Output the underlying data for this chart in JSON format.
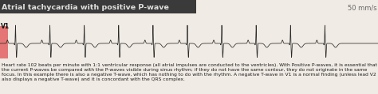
{
  "title": "Atrial tachycardia with positive P-wave",
  "speed_label": "50 mm/s",
  "lead_label": "V1",
  "title_bg": "#3a3a3a",
  "title_fg": "#e0e0e0",
  "ecg_bg": "#f0ebe4",
  "ecg_line_color": "#2a2a2a",
  "lead_box_color": "#e05050",
  "speed_color": "#666666",
  "body_text": "Heart rate 102 beats per minute with 1:1 ventricular response (all atrial impulses are conducted to the ventricles). With Positive P-waves, it is essential that the current P-waves be compared with the P-waves visible during sinus rhythm; if they do not have the same contour, they do not originate in the same focus. In this example there is also a negative T-wave, which has nothing to do with the rhythm. A negative T-wave in V1 is a normal finding (unless lead V2 also displays a negative T-wave) and it is concordant with the QRS complex.",
  "fig_width": 4.74,
  "fig_height": 1.19,
  "dpi": 100
}
